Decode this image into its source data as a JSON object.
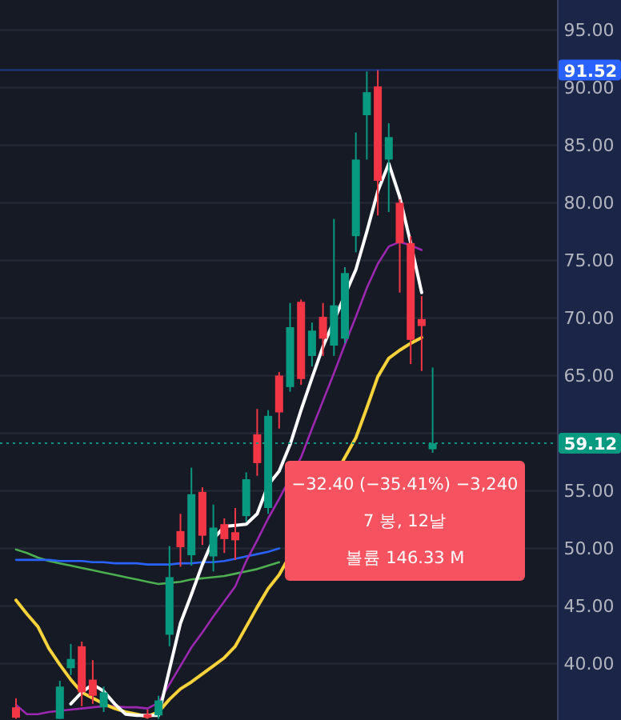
{
  "chart_data": {
    "type": "candlestick",
    "categories": [
      null,
      null,
      null,
      null,
      null,
      null,
      null,
      null,
      null,
      null,
      null,
      null,
      null,
      null,
      null,
      null,
      null,
      null,
      null,
      null,
      null,
      null,
      null,
      null,
      null,
      null,
      null,
      null,
      null,
      null,
      null,
      null,
      null,
      null,
      null,
      null,
      null,
      null,
      null
    ],
    "ohlc": [
      [
        36.2,
        37,
        35.2,
        35.3
      ],
      null,
      null,
      null,
      [
        35.2,
        38.5,
        35.2,
        38
      ],
      [
        39.6,
        41.7,
        39,
        40.4
      ],
      [
        41.5,
        41.9,
        36.3,
        37.5
      ],
      [
        38.6,
        40.3,
        36.5,
        37.2
      ],
      [
        36.2,
        38,
        35.8,
        37.5
      ],
      null,
      null,
      null,
      [
        35.6,
        36,
        35.2,
        35.3
      ],
      [
        35.5,
        37.2,
        35.2,
        36.8
      ],
      [
        42.5,
        50.2,
        41.5,
        47.5
      ],
      [
        51.5,
        53,
        48.4,
        50.1
      ],
      [
        49.4,
        57,
        48.5,
        54.7
      ],
      [
        54.9,
        55.3,
        50.3,
        51.1
      ],
      [
        49.3,
        53.8,
        48,
        51.8
      ],
      [
        52.1,
        52.6,
        49.6,
        50.8
      ],
      [
        51.4,
        53.5,
        49,
        50.7
      ],
      [
        52.8,
        56.6,
        52.3,
        56
      ],
      [
        59.9,
        62.1,
        56.3,
        57.4
      ],
      [
        53.5,
        62,
        53,
        61.5
      ],
      [
        65,
        65.3,
        60.4,
        61.8
      ],
      [
        64,
        71.3,
        63.6,
        69.2
      ],
      [
        71.4,
        71.6,
        64.2,
        64.7
      ],
      [
        66.7,
        69.6,
        65.8,
        68.9
      ],
      [
        70.1,
        71.3,
        66.7,
        68.2
      ],
      [
        67.6,
        78.6,
        66.7,
        71.1
      ],
      [
        68.2,
        74.4,
        67.8,
        73.9
      ],
      [
        77.1,
        86.1,
        75.7,
        83.75
      ],
      [
        87.6,
        91.4,
        83.75,
        89.6
      ],
      [
        90.1,
        91.52,
        78.9,
        81.9
      ],
      [
        83.75,
        86.9,
        79.2,
        85.7
      ],
      [
        80,
        80.3,
        72.2,
        76.5
      ],
      [
        76.5,
        77.1,
        66,
        68.1
      ],
      [
        69.9,
        71.9,
        65.4,
        69.3
      ],
      [
        58.6,
        65.7,
        58.3,
        59.12
      ]
    ],
    "series": [
      {
        "type": "line",
        "color": "#4caf50",
        "values": [
          49.9,
          49.6,
          49.2,
          48.9,
          48.7,
          48.5,
          48.3,
          48.1,
          47.9,
          47.7,
          47.5,
          47.3,
          47.1,
          46.9,
          47,
          47.1,
          47.3,
          47.4,
          47.5,
          47.6,
          47.8,
          48,
          48.2,
          48.5,
          48.8,
          null,
          null,
          null,
          null,
          null,
          null,
          null,
          null,
          null,
          null,
          null,
          null,
          null,
          null
        ]
      },
      {
        "type": "line",
        "color": "#2962ff",
        "values": [
          49,
          49,
          49,
          49,
          48.9,
          48.9,
          48.9,
          48.8,
          48.8,
          48.7,
          48.7,
          48.7,
          48.6,
          48.6,
          48.6,
          48.7,
          48.7,
          48.8,
          48.8,
          48.9,
          49.1,
          49.3,
          49.5,
          49.7,
          50,
          null,
          null,
          null,
          null,
          null,
          null,
          null,
          null,
          null,
          null,
          null,
          null,
          null,
          null
        ]
      },
      {
        "type": "line",
        "color": "#9c27b0",
        "values": [
          36.4,
          35.6,
          35.6,
          35.8,
          35.9,
          36,
          36.1,
          36.2,
          36.3,
          36.3,
          36.2,
          36.2,
          36.1,
          36.6,
          38.2,
          39.8,
          41.4,
          42.7,
          44.1,
          45.4,
          46.7,
          48.9,
          50.7,
          52.6,
          54.3,
          null,
          57.9,
          60.4,
          62.8,
          65.2,
          67.7,
          70.1,
          72.6,
          74.7,
          76.2,
          76.6,
          76.3,
          75.9,
          null
        ]
      },
      {
        "type": "line",
        "color": "#f7d23a",
        "values": [
          45.5,
          44.3,
          43.2,
          41.3,
          39.9,
          38.6,
          37.5,
          37,
          36.5,
          36.1,
          35.8,
          35.6,
          35.4,
          35.8,
          36.9,
          37.8,
          38.4,
          39.1,
          39.8,
          40.5,
          41.5,
          43.2,
          44.9,
          46.5,
          47.7,
          null,
          null,
          null,
          null,
          null,
          null,
          59.6,
          62.2,
          64.9,
          66.5,
          67.2,
          67.8,
          68.3,
          null
        ]
      },
      {
        "type": "line",
        "color": "#ffffff",
        "values": [
          null,
          null,
          null,
          null,
          null,
          36.5,
          37.5,
          38.2,
          37.6,
          36.5,
          35.6,
          35.5,
          35.5,
          35.5,
          39.5,
          43.5,
          46,
          48.6,
          50.8,
          51.9,
          52,
          52.1,
          53,
          55.5,
          56.7,
          59,
          62,
          64.8,
          67.5,
          null,
          72,
          74.2,
          77.5,
          81,
          83.4,
          80.5,
          76.5,
          72.2,
          null
        ]
      }
    ],
    "ylim": [
      35.1,
      97.6
    ],
    "yticks": [
      {
        "value": 40,
        "label": "40.00"
      },
      {
        "value": 45,
        "label": "45.00"
      },
      {
        "value": 50,
        "label": "50.00"
      },
      {
        "value": 55,
        "label": "55.00"
      },
      {
        "value": 60,
        "label": null
      },
      {
        "value": 65,
        "label": "65.00"
      },
      {
        "value": 70,
        "label": "70.00"
      },
      {
        "value": 75,
        "label": "75.00"
      },
      {
        "value": 80,
        "label": "80.00"
      },
      {
        "value": 85,
        "label": "85.00"
      },
      {
        "value": 90,
        "label": "90.00"
      },
      {
        "value": 95,
        "label": "95.00"
      }
    ],
    "grid": "y",
    "ref_lines": [
      {
        "axis": "y",
        "value": 91.52,
        "label": "91.52",
        "color": "#2962ff",
        "line_style": "solid"
      },
      {
        "axis": "y",
        "value": 59.12,
        "label": "59.12",
        "color": "#089981",
        "line_style": "dotted"
      }
    ],
    "annotations": [
      "−32.40 (−35.41%) −3,240",
      "7 봉, 12날",
      "볼륨 146.33 M"
    ]
  }
}
